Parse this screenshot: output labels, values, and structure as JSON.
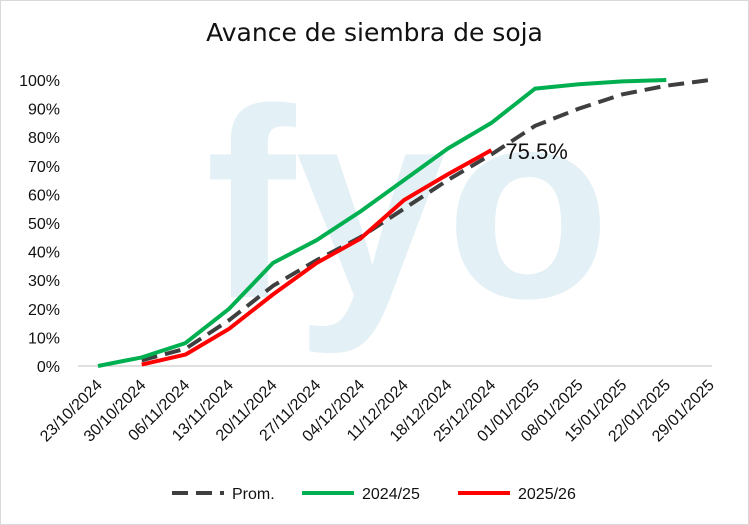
{
  "chart_data": {
    "type": "line",
    "title": "Avance de siembra de soja",
    "ylim": [
      0,
      100
    ],
    "y_ticks": [
      "0%",
      "10%",
      "20%",
      "30%",
      "40%",
      "50%",
      "60%",
      "70%",
      "80%",
      "90%",
      "100%"
    ],
    "categories": [
      "23/10/2024",
      "30/10/2024",
      "06/11/2024",
      "13/11/2024",
      "20/11/2024",
      "27/11/2024",
      "04/12/2024",
      "11/12/2024",
      "18/12/2024",
      "25/12/2024",
      "01/01/2025",
      "08/01/2025",
      "15/01/2025",
      "22/01/2025",
      "29/01/2025"
    ],
    "grid": false,
    "legend_position": "bottom",
    "series": [
      {
        "name": "Prom.",
        "color": "#3f3f3f",
        "dash": true,
        "values": [
          null,
          2,
          6,
          16,
          28,
          37,
          45,
          55,
          65,
          74,
          84,
          90,
          95,
          98,
          100
        ]
      },
      {
        "name": "2024/25",
        "color": "#00b050",
        "dash": false,
        "values": [
          0,
          3,
          8,
          20,
          36,
          44,
          54,
          65,
          76,
          85,
          97,
          98.5,
          99.5,
          100,
          null
        ]
      },
      {
        "name": "2025/26",
        "color": "#ff0000",
        "dash": false,
        "values": [
          null,
          0.5,
          4,
          13,
          25,
          36,
          44.5,
          58,
          67,
          75.5,
          null,
          null,
          null,
          null,
          null
        ]
      }
    ],
    "annotation": {
      "text": "75.5%",
      "category": "25/12/2024",
      "value": 75.5
    }
  },
  "watermark": {
    "text": "fyo",
    "color": "#e3f1f6"
  }
}
